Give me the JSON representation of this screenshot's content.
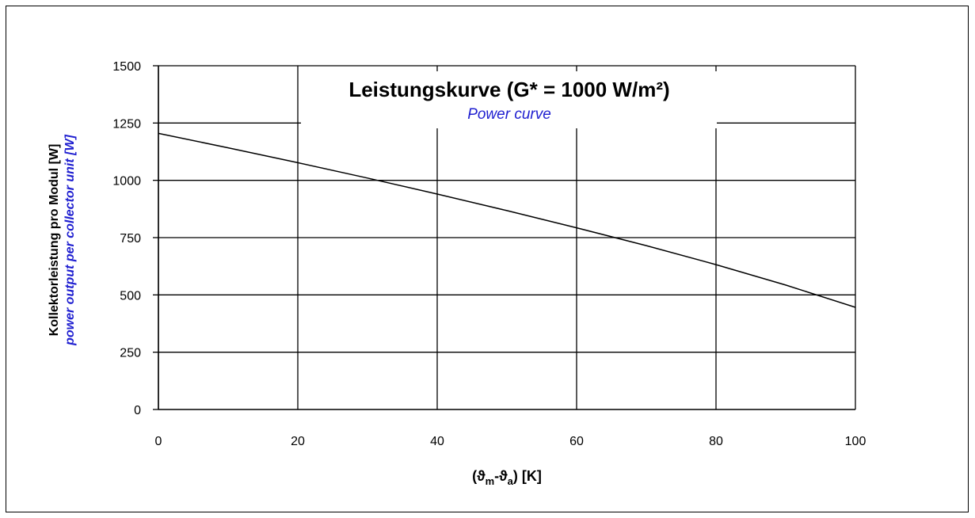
{
  "chart_data": {
    "type": "line",
    "title": "Leistungskurve (G* = 1000 W/m²)",
    "subtitle": "Power curve",
    "xlabel": "(ϑm-ϑa) [K]",
    "xlabel_parts": {
      "open": "(ϑ",
      "sub1": "m",
      "mid": "-ϑ",
      "sub2": "a",
      "close": ") [K]"
    },
    "ylabel": "Kollektorleistung pro Modul [W]",
    "ylabel_en": "power output per collector unit [W]",
    "xlim": [
      0,
      100
    ],
    "ylim": [
      0,
      1500
    ],
    "x_ticks": [
      0,
      20,
      40,
      60,
      80,
      100
    ],
    "y_ticks": [
      0,
      250,
      500,
      750,
      1000,
      1250,
      1500
    ],
    "grid": true,
    "series": [
      {
        "color": "#000000",
        "x": [
          0,
          10,
          20,
          30,
          40,
          50,
          60,
          70,
          80,
          90,
          100
        ],
        "y": [
          1205,
          1142,
          1077,
          1010,
          940,
          868,
          793,
          715,
          632,
          543,
          446
        ]
      }
    ]
  }
}
